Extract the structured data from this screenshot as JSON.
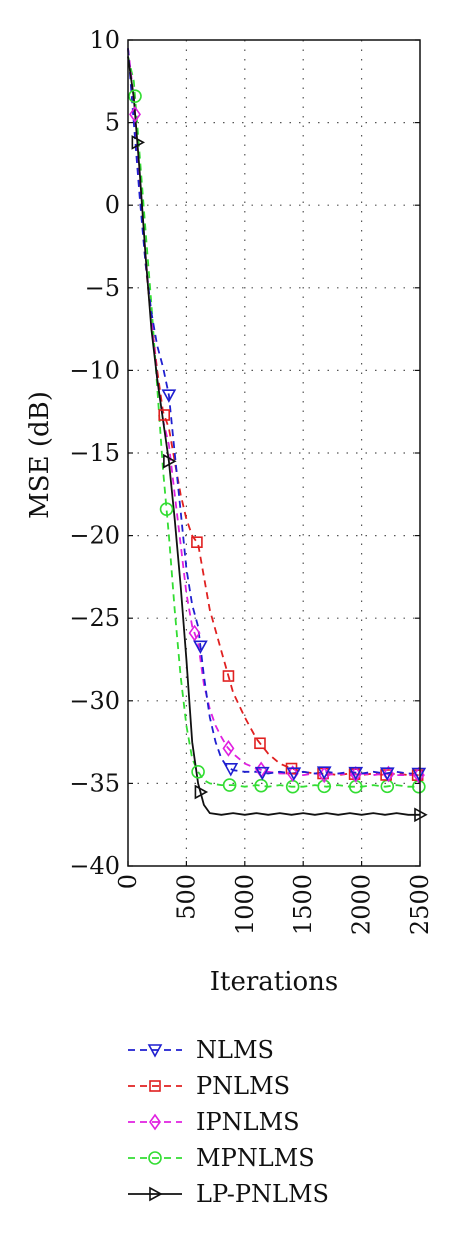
{
  "chart_data": {
    "type": "line",
    "xlabel": "Iterations",
    "ylabel": "MSE (dB)",
    "xlim": [
      0,
      2500
    ],
    "ylim": [
      -40,
      10
    ],
    "x_ticks": [
      "0",
      "500",
      "1000",
      "1500",
      "2000",
      "2500"
    ],
    "y_ticks": [
      "10",
      "5",
      "0",
      "−5",
      "−10",
      "−15",
      "−20",
      "−25",
      "−30",
      "−35",
      "−40"
    ],
    "grid": "dotted",
    "legend_position": "bottom",
    "series": [
      {
        "name": "NLMS",
        "color": "#1f1fd0",
        "dash": "dashed",
        "marker": "triangle-down",
        "x": [
          0,
          50,
          100,
          150,
          200,
          250,
          300,
          350,
          400,
          450,
          500,
          550,
          600,
          650,
          700,
          750,
          800,
          850,
          900,
          1000,
          1100,
          1200,
          1300,
          1400,
          1500,
          1600,
          1700,
          1800,
          1900,
          2000,
          2100,
          2200,
          2300,
          2400,
          2500
        ],
        "y": [
          9.5,
          5,
          0.5,
          -3.5,
          -6.5,
          -8.5,
          -9.8,
          -11.5,
          -15,
          -18.5,
          -22,
          -24.2,
          -25.5,
          -28.5,
          -31,
          -32.5,
          -33.5,
          -34,
          -34.2,
          -34.3,
          -34.3,
          -34.4,
          -34.3,
          -34.4,
          -34.3,
          -34.4,
          -34.3,
          -34.4,
          -34.3,
          -34.4,
          -34.3,
          -34.4,
          -34.3,
          -34.4,
          -34.4
        ],
        "marker_x": [
          350,
          620,
          880,
          1150,
          1420,
          1680,
          1950,
          2220,
          2490
        ]
      },
      {
        "name": "PNLMS",
        "color": "#e02020",
        "dash": "dashed",
        "marker": "square",
        "x": [
          0,
          50,
          100,
          150,
          200,
          250,
          300,
          350,
          400,
          450,
          500,
          550,
          600,
          700,
          800,
          900,
          1000,
          1100,
          1200,
          1300,
          1400,
          1500,
          1600,
          1700,
          1800,
          1900,
          2000,
          2100,
          2200,
          2300,
          2400,
          2500
        ],
        "y": [
          9.5,
          6,
          1,
          -3.5,
          -7,
          -10,
          -12.5,
          -13.5,
          -15.5,
          -17.5,
          -19,
          -20,
          -20.5,
          -24.5,
          -27,
          -29.5,
          -31,
          -32.3,
          -33.2,
          -33.8,
          -34.1,
          -34.3,
          -34.4,
          -34.4,
          -34.5,
          -34.4,
          -34.5,
          -34.4,
          -34.5,
          -34.4,
          -34.5,
          -34.5
        ],
        "marker_x": [
          310,
          590,
          860,
          1130,
          1400,
          1670,
          1940,
          2210,
          2480
        ]
      },
      {
        "name": "IPNLMS",
        "color": "#e020e0",
        "dash": "dashed",
        "marker": "diamond",
        "x": [
          0,
          50,
          100,
          150,
          200,
          250,
          300,
          350,
          400,
          450,
          500,
          550,
          600,
          650,
          700,
          750,
          800,
          850,
          900,
          1000,
          1100,
          1200,
          1300,
          1400,
          1500,
          1600,
          1700,
          1800,
          1900,
          2000,
          2100,
          2200,
          2300,
          2400,
          2500
        ],
        "y": [
          9.5,
          6.5,
          1.5,
          -3,
          -7,
          -10.5,
          -13,
          -14.5,
          -17.5,
          -20.5,
          -23.5,
          -25.5,
          -26.5,
          -29,
          -30.5,
          -31.5,
          -32.2,
          -32.8,
          -33.2,
          -33.8,
          -34.1,
          -34.3,
          -34.4,
          -34.4,
          -34.5,
          -34.4,
          -34.5,
          -34.4,
          -34.5,
          -34.4,
          -34.5,
          -34.4,
          -34.5,
          -34.5,
          -34.5
        ],
        "marker_x": [
          60,
          570,
          860,
          1140,
          1410,
          1680,
          1950,
          2230,
          2490
        ]
      },
      {
        "name": "MPNLMS",
        "color": "#33dd33",
        "dash": "dashed",
        "marker": "circle",
        "x": [
          0,
          50,
          100,
          150,
          200,
          250,
          300,
          350,
          400,
          450,
          500,
          550,
          600,
          650,
          700,
          800,
          900,
          1000,
          1100,
          1200,
          1300,
          1400,
          1500,
          1600,
          1700,
          1800,
          1900,
          2000,
          2100,
          2200,
          2300,
          2400,
          2500
        ],
        "y": [
          9,
          7.5,
          3,
          -1.5,
          -6,
          -11,
          -16,
          -20,
          -24.5,
          -28.5,
          -31.5,
          -33.5,
          -34.3,
          -34.8,
          -35,
          -35.1,
          -35.1,
          -35.2,
          -35.1,
          -35.2,
          -35.1,
          -35.2,
          -35.2,
          -35.1,
          -35.2,
          -35.1,
          -35.2,
          -35.2,
          -35.1,
          -35.2,
          -35.1,
          -35.2,
          -35.2
        ],
        "marker_x": [
          60,
          330,
          600,
          870,
          1140,
          1410,
          1680,
          1950,
          2220,
          2490
        ]
      },
      {
        "name": "LP-PNLMS",
        "color": "#111111",
        "dash": "solid",
        "marker": "triangle-right",
        "x": [
          0,
          50,
          100,
          150,
          200,
          250,
          300,
          350,
          400,
          450,
          500,
          550,
          600,
          650,
          700,
          800,
          900,
          1000,
          1100,
          1200,
          1300,
          1400,
          1500,
          1600,
          1700,
          1800,
          1900,
          2000,
          2100,
          2200,
          2300,
          2400,
          2500
        ],
        "y": [
          9,
          6.5,
          2,
          -3,
          -7.5,
          -10.5,
          -13,
          -15.5,
          -19,
          -23,
          -27.5,
          -32.5,
          -35,
          -36.3,
          -36.8,
          -36.9,
          -36.8,
          -36.9,
          -36.8,
          -36.9,
          -36.8,
          -36.9,
          -36.8,
          -36.9,
          -36.8,
          -36.9,
          -36.8,
          -36.9,
          -36.8,
          -36.9,
          -36.8,
          -36.9,
          -36.9
        ],
        "marker_x": [
          80,
          350,
          620,
          2500
        ]
      }
    ]
  }
}
